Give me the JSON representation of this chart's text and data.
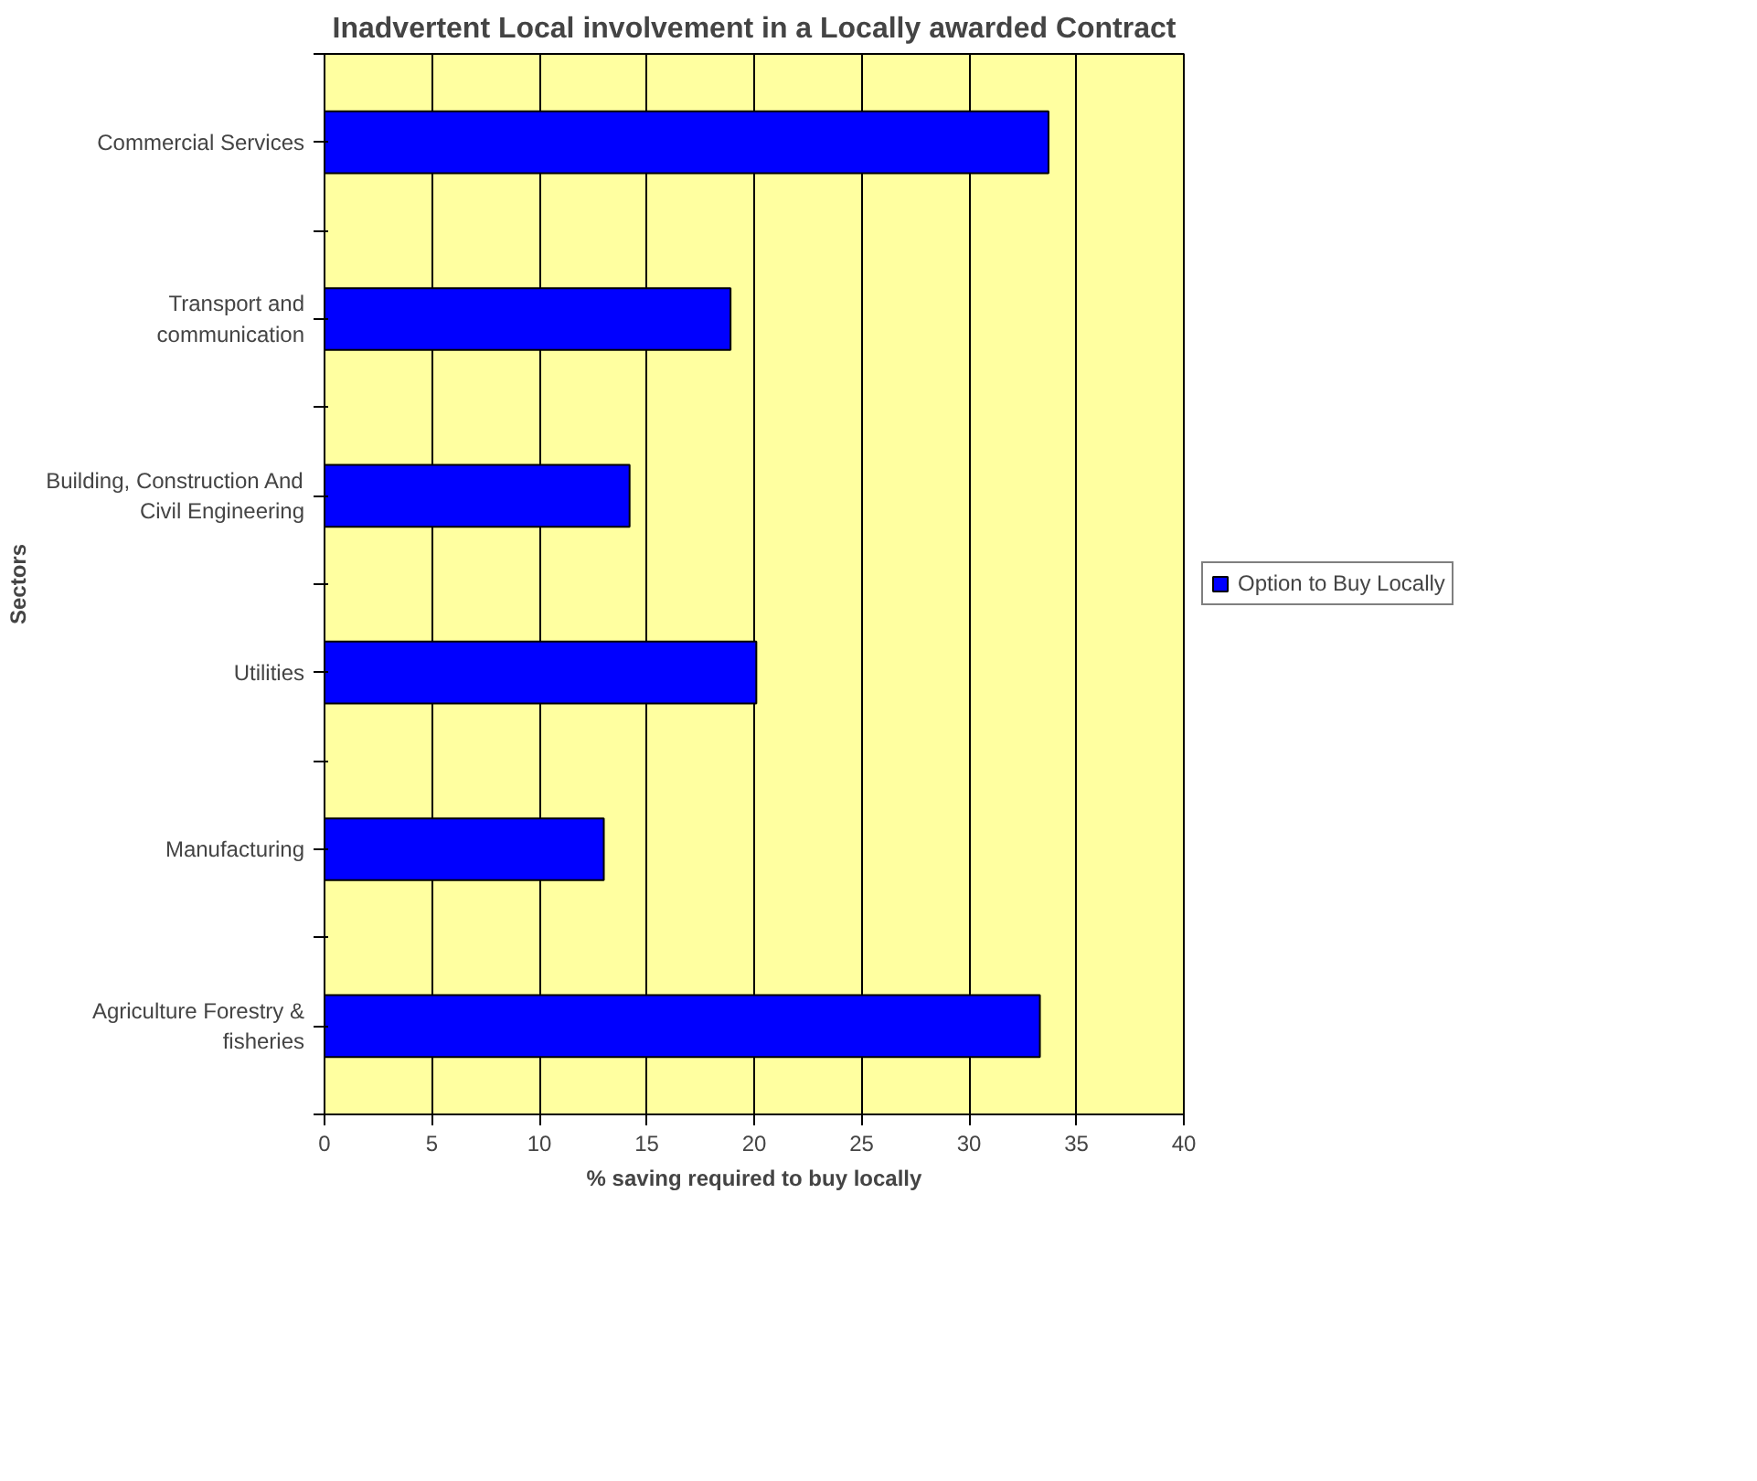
{
  "chart_data": {
    "type": "bar",
    "orientation": "horizontal",
    "title": "Inadvertent Local involvement in a Locally awarded Contract",
    "xlabel": "% saving required to buy locally",
    "ylabel": "Sectors",
    "categories": [
      "Commercial Services",
      "Transport and communication",
      "Building, Construction And Civil Engineering",
      "Utilities",
      "Manufacturing",
      "Agriculture Forestry & fisheries"
    ],
    "series": [
      {
        "name": "Option to Buy Locally",
        "color": "#0000ff",
        "values": [
          33.7,
          18.9,
          14.2,
          20.1,
          13.0,
          33.3
        ]
      }
    ],
    "xlim": [
      0,
      40
    ],
    "xticks": [
      0,
      5,
      10,
      15,
      20,
      25,
      30,
      35,
      40
    ],
    "grid": "x",
    "legend": "right"
  }
}
